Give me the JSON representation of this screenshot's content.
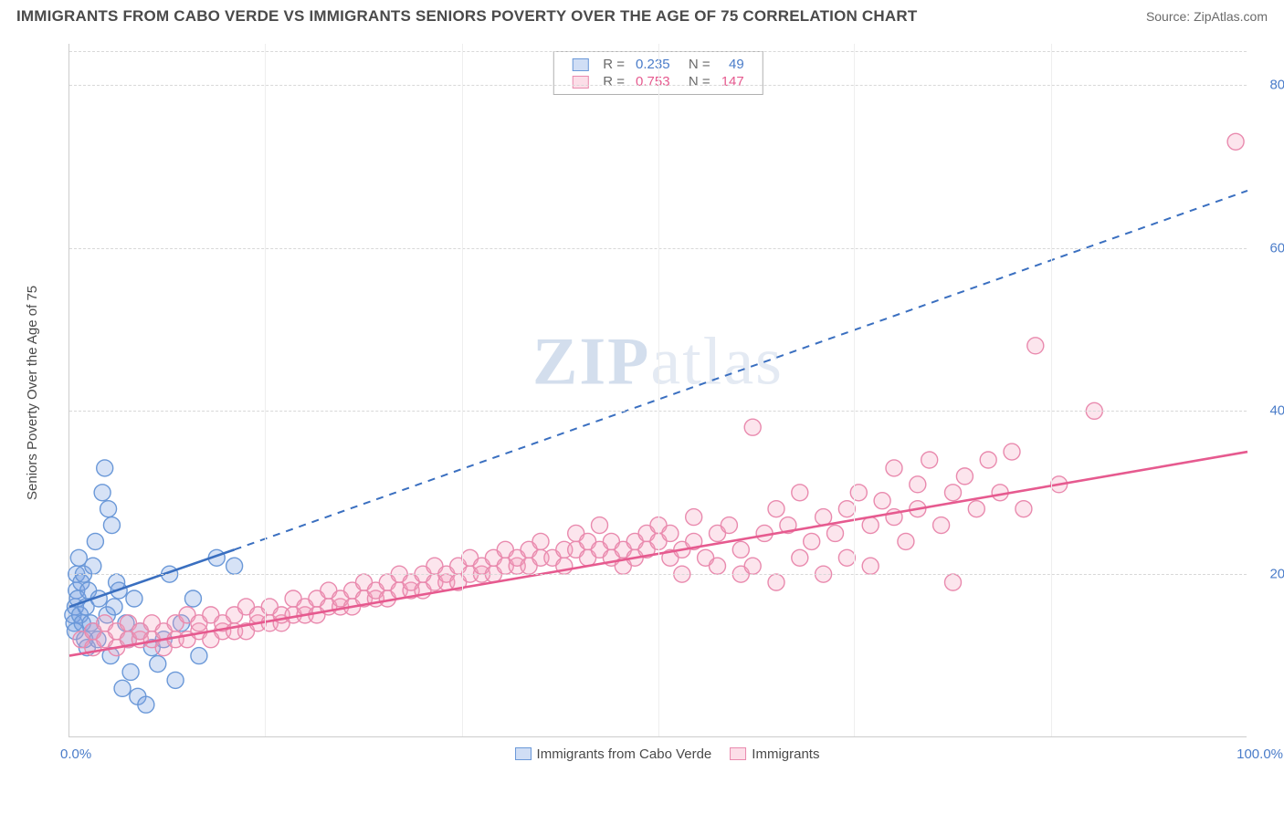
{
  "chart": {
    "type": "scatter",
    "title": "IMMIGRANTS FROM CABO VERDE VS IMMIGRANTS SENIORS POVERTY OVER THE AGE OF 75 CORRELATION CHART",
    "source": "Source: ZipAtlas.com",
    "watermark": {
      "bold": "ZIP",
      "rest": "atlas"
    },
    "ylabel": "Seniors Poverty Over the Age of 75",
    "xlim": [
      0,
      100
    ],
    "ylim": [
      0,
      85
    ],
    "xticks": {
      "left": "0.0%",
      "right": "100.0%"
    },
    "yticks": [
      {
        "v": 20,
        "label": "20.0%"
      },
      {
        "v": 40,
        "label": "40.0%"
      },
      {
        "v": 60,
        "label": "60.0%"
      },
      {
        "v": 80,
        "label": "80.0%"
      }
    ],
    "x_gridlines": [
      16.6,
      33.3,
      50,
      66.6,
      83.3
    ],
    "background_color": "#ffffff",
    "grid_color": "#d8d8d8",
    "marker_radius": 9,
    "marker_stroke_w": 1.4,
    "series": [
      {
        "name": "Immigrants from Cabo Verde",
        "color_fill": "rgba(120,160,225,0.30)",
        "color_stroke": "#6a98d8",
        "R": "0.235",
        "N": "49",
        "trend": {
          "x1": 0,
          "y1": 16,
          "x2": 14,
          "y2": 23,
          "dash_x2": 100,
          "dash_y2": 67,
          "color": "#3a6fc0",
          "width": 2.6
        },
        "points": [
          [
            0.3,
            15
          ],
          [
            0.4,
            14
          ],
          [
            0.5,
            16
          ],
          [
            0.5,
            13
          ],
          [
            0.6,
            18
          ],
          [
            0.6,
            20
          ],
          [
            0.7,
            17
          ],
          [
            0.8,
            22
          ],
          [
            0.9,
            15
          ],
          [
            1.0,
            19
          ],
          [
            1.1,
            14
          ],
          [
            1.2,
            20
          ],
          [
            1.3,
            12
          ],
          [
            1.4,
            16
          ],
          [
            1.5,
            11
          ],
          [
            1.6,
            18
          ],
          [
            1.8,
            14
          ],
          [
            2.0,
            13
          ],
          [
            2.0,
            21
          ],
          [
            2.2,
            24
          ],
          [
            2.4,
            12
          ],
          [
            2.5,
            17
          ],
          [
            2.8,
            30
          ],
          [
            3.0,
            33
          ],
          [
            3.2,
            15
          ],
          [
            3.3,
            28
          ],
          [
            3.5,
            10
          ],
          [
            3.6,
            26
          ],
          [
            3.8,
            16
          ],
          [
            4.0,
            19
          ],
          [
            4.2,
            18
          ],
          [
            4.5,
            6
          ],
          [
            4.8,
            14
          ],
          [
            5.0,
            12
          ],
          [
            5.2,
            8
          ],
          [
            5.5,
            17
          ],
          [
            5.8,
            5
          ],
          [
            6.0,
            13
          ],
          [
            6.5,
            4
          ],
          [
            7.0,
            11
          ],
          [
            7.5,
            9
          ],
          [
            8.0,
            12
          ],
          [
            8.5,
            20
          ],
          [
            9.0,
            7
          ],
          [
            9.5,
            14
          ],
          [
            10.5,
            17
          ],
          [
            11.0,
            10
          ],
          [
            12.5,
            22
          ],
          [
            14.0,
            21
          ]
        ]
      },
      {
        "name": "Immigrants",
        "color_fill": "rgba(245,160,190,0.28)",
        "color_stroke": "#e98aae",
        "R": "0.753",
        "N": "147",
        "trend": {
          "x1": 0,
          "y1": 10,
          "x2": 100,
          "y2": 35,
          "color": "#e65a8f",
          "width": 2.6
        },
        "points": [
          [
            1,
            12
          ],
          [
            2,
            11
          ],
          [
            2,
            13
          ],
          [
            3,
            12
          ],
          [
            3,
            14
          ],
          [
            4,
            11
          ],
          [
            4,
            13
          ],
          [
            5,
            12
          ],
          [
            5,
            14
          ],
          [
            6,
            12
          ],
          [
            6,
            13
          ],
          [
            7,
            12
          ],
          [
            7,
            14
          ],
          [
            8,
            11
          ],
          [
            8,
            13
          ],
          [
            9,
            12
          ],
          [
            9,
            14
          ],
          [
            10,
            12
          ],
          [
            10,
            15
          ],
          [
            11,
            13
          ],
          [
            11,
            14
          ],
          [
            12,
            12
          ],
          [
            12,
            15
          ],
          [
            13,
            13
          ],
          [
            13,
            14
          ],
          [
            14,
            13
          ],
          [
            14,
            15
          ],
          [
            15,
            13
          ],
          [
            15,
            16
          ],
          [
            16,
            14
          ],
          [
            16,
            15
          ],
          [
            17,
            14
          ],
          [
            17,
            16
          ],
          [
            18,
            14
          ],
          [
            18,
            15
          ],
          [
            19,
            15
          ],
          [
            19,
            17
          ],
          [
            20,
            15
          ],
          [
            20,
            16
          ],
          [
            21,
            15
          ],
          [
            21,
            17
          ],
          [
            22,
            16
          ],
          [
            22,
            18
          ],
          [
            23,
            16
          ],
          [
            23,
            17
          ],
          [
            24,
            16
          ],
          [
            24,
            18
          ],
          [
            25,
            17
          ],
          [
            25,
            19
          ],
          [
            26,
            17
          ],
          [
            26,
            18
          ],
          [
            27,
            17
          ],
          [
            27,
            19
          ],
          [
            28,
            18
          ],
          [
            28,
            20
          ],
          [
            29,
            18
          ],
          [
            29,
            19
          ],
          [
            30,
            18
          ],
          [
            30,
            20
          ],
          [
            31,
            19
          ],
          [
            31,
            21
          ],
          [
            32,
            19
          ],
          [
            32,
            20
          ],
          [
            33,
            19
          ],
          [
            33,
            21
          ],
          [
            34,
            20
          ],
          [
            34,
            22
          ],
          [
            35,
            20
          ],
          [
            35,
            21
          ],
          [
            36,
            20
          ],
          [
            36,
            22
          ],
          [
            37,
            21
          ],
          [
            37,
            23
          ],
          [
            38,
            21
          ],
          [
            38,
            22
          ],
          [
            39,
            21
          ],
          [
            39,
            23
          ],
          [
            40,
            22
          ],
          [
            40,
            24
          ],
          [
            41,
            22
          ],
          [
            42,
            23
          ],
          [
            42,
            21
          ],
          [
            43,
            23
          ],
          [
            43,
            25
          ],
          [
            44,
            22
          ],
          [
            44,
            24
          ],
          [
            45,
            23
          ],
          [
            45,
            26
          ],
          [
            46,
            22
          ],
          [
            46,
            24
          ],
          [
            47,
            23
          ],
          [
            47,
            21
          ],
          [
            48,
            24
          ],
          [
            48,
            22
          ],
          [
            49,
            25
          ],
          [
            49,
            23
          ],
          [
            50,
            24
          ],
          [
            50,
            26
          ],
          [
            51,
            22
          ],
          [
            51,
            25
          ],
          [
            52,
            23
          ],
          [
            52,
            20
          ],
          [
            53,
            24
          ],
          [
            53,
            27
          ],
          [
            54,
            22
          ],
          [
            55,
            25
          ],
          [
            55,
            21
          ],
          [
            56,
            26
          ],
          [
            57,
            23
          ],
          [
            57,
            20
          ],
          [
            58,
            21
          ],
          [
            58,
            38
          ],
          [
            59,
            25
          ],
          [
            60,
            19
          ],
          [
            60,
            28
          ],
          [
            61,
            26
          ],
          [
            62,
            22
          ],
          [
            62,
            30
          ],
          [
            63,
            24
          ],
          [
            64,
            27
          ],
          [
            64,
            20
          ],
          [
            65,
            25
          ],
          [
            66,
            28
          ],
          [
            66,
            22
          ],
          [
            67,
            30
          ],
          [
            68,
            26
          ],
          [
            68,
            21
          ],
          [
            69,
            29
          ],
          [
            70,
            27
          ],
          [
            70,
            33
          ],
          [
            71,
            24
          ],
          [
            72,
            28
          ],
          [
            72,
            31
          ],
          [
            73,
            34
          ],
          [
            74,
            26
          ],
          [
            75,
            30
          ],
          [
            75,
            19
          ],
          [
            76,
            32
          ],
          [
            77,
            28
          ],
          [
            78,
            34
          ],
          [
            79,
            30
          ],
          [
            80,
            35
          ],
          [
            81,
            28
          ],
          [
            82,
            48
          ],
          [
            84,
            31
          ],
          [
            87,
            40
          ],
          [
            99,
            73
          ]
        ]
      }
    ],
    "x_legend": [
      {
        "swatch": "blue",
        "label": "Immigrants from Cabo Verde"
      },
      {
        "swatch": "pink",
        "label": "Immigrants"
      }
    ]
  }
}
